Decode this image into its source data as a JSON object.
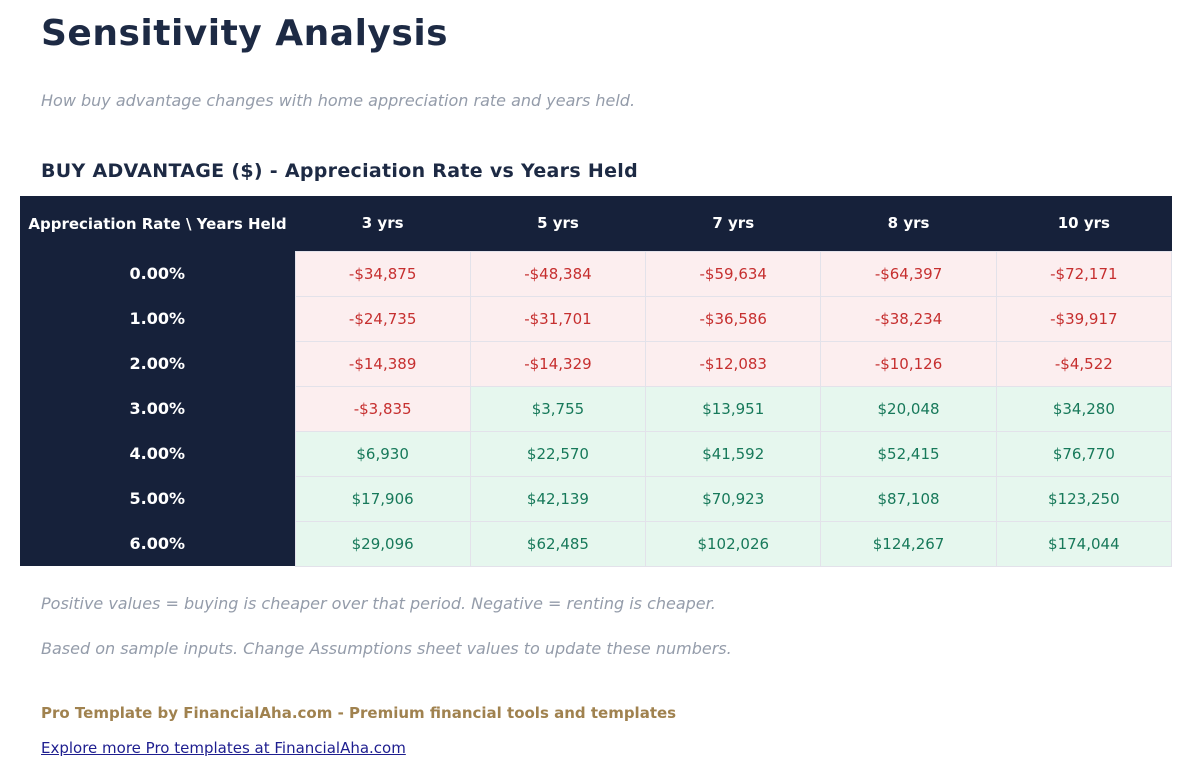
{
  "header": {
    "title": "Sensitivity Analysis",
    "subtitle": "How buy advantage changes with home appreciation rate and years held."
  },
  "section": {
    "heading": "BUY ADVANTAGE ($) - Appreciation Rate vs Years Held"
  },
  "chart_data": {
    "type": "table",
    "title": "BUY ADVANTAGE ($) - Appreciation Rate vs Years Held",
    "corner_header": "Appreciation Rate \\ Years Held",
    "columns": [
      "3 yrs",
      "5 yrs",
      "7 yrs",
      "8 yrs",
      "10 yrs"
    ],
    "rows": [
      {
        "label": "0.00%",
        "values": [
          "-$34,875",
          "-$48,384",
          "-$59,634",
          "-$64,397",
          "-$72,171"
        ]
      },
      {
        "label": "1.00%",
        "values": [
          "-$24,735",
          "-$31,701",
          "-$36,586",
          "-$38,234",
          "-$39,917"
        ]
      },
      {
        "label": "2.00%",
        "values": [
          "-$14,389",
          "-$14,329",
          "-$12,083",
          "-$10,126",
          "-$4,522"
        ]
      },
      {
        "label": "3.00%",
        "values": [
          "-$3,835",
          "$3,755",
          "$13,951",
          "$20,048",
          "$34,280"
        ]
      },
      {
        "label": "4.00%",
        "values": [
          "$6,930",
          "$22,570",
          "$41,592",
          "$52,415",
          "$76,770"
        ]
      },
      {
        "label": "5.00%",
        "values": [
          "$17,906",
          "$42,139",
          "$70,923",
          "$87,108",
          "$123,250"
        ]
      },
      {
        "label": "6.00%",
        "values": [
          "$29,096",
          "$62,485",
          "$102,026",
          "$124,267",
          "$174,044"
        ]
      }
    ]
  },
  "notes": [
    "Positive values = buying is cheaper over that period. Negative = renting is cheaper.",
    "Based on sample inputs. Change Assumptions sheet values to update these numbers."
  ],
  "footer": {
    "branding": "Pro Template by FinancialAha.com - Premium financial tools and templates",
    "link_text": "Explore more Pro templates at FinancialAha.com"
  },
  "colors": {
    "navy_header": "#16213a",
    "title_text": "#1d2a44",
    "muted_italic_text": "#949caa",
    "negative_text": "#c62f2f",
    "negative_bg": "#fceeef",
    "positive_text": "#17795a",
    "positive_bg": "#e6f7ee",
    "branding_brown": "#a0824f",
    "link_blue": "#1e1e8f"
  }
}
